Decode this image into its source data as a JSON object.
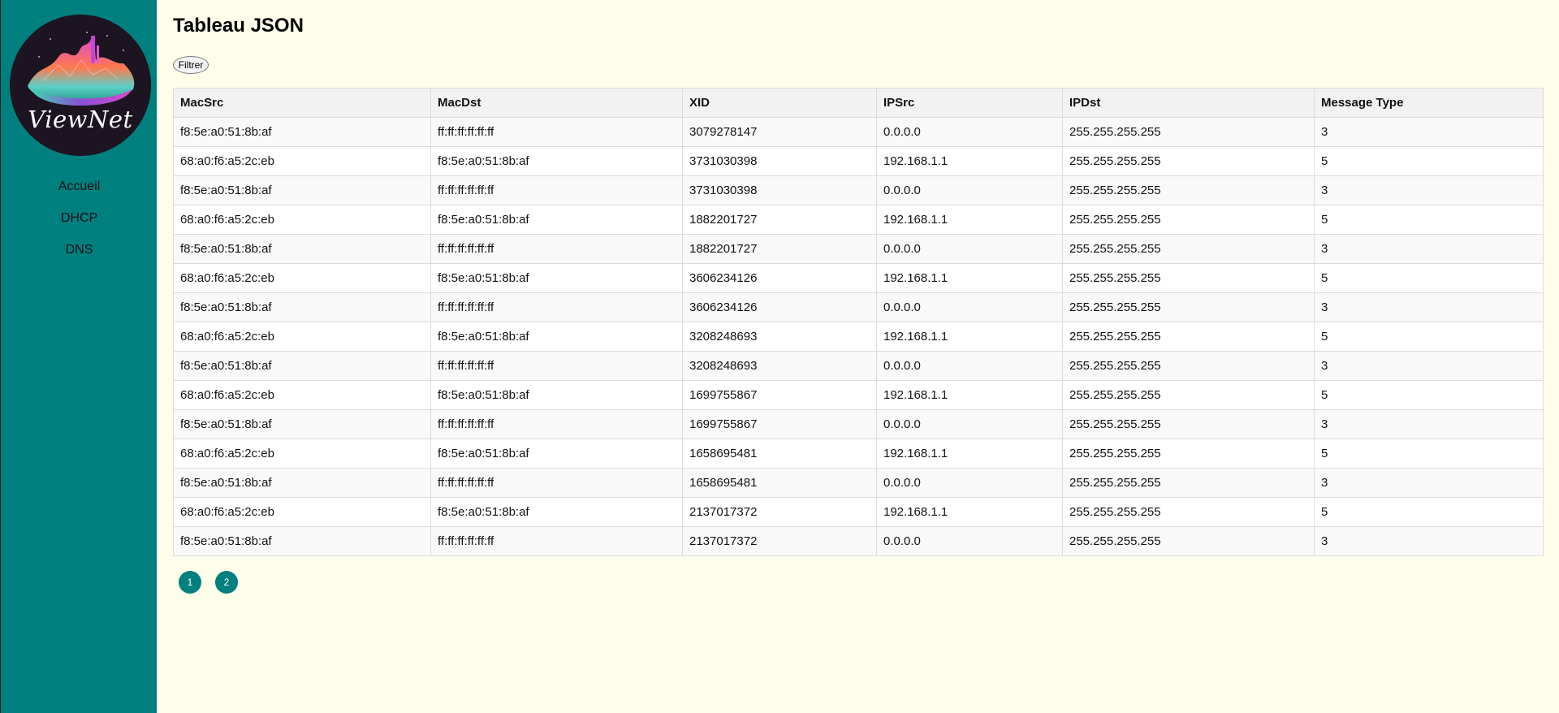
{
  "sidebar": {
    "logo_text": "ViewNet",
    "nav": [
      {
        "label": "Accueil"
      },
      {
        "label": "DHCP"
      },
      {
        "label": "DNS"
      }
    ]
  },
  "main": {
    "title": "Tableau JSON",
    "filter_label": "Filtrer"
  },
  "table": {
    "columns": [
      "MacSrc",
      "MacDst",
      "XID",
      "IPSrc",
      "IPDst",
      "Message Type"
    ],
    "rows": [
      [
        "f8:5e:a0:51:8b:af",
        "ff:ff:ff:ff:ff:ff",
        "3079278147",
        "0.0.0.0",
        "255.255.255.255",
        "3"
      ],
      [
        "68:a0:f6:a5:2c:eb",
        "f8:5e:a0:51:8b:af",
        "3731030398",
        "192.168.1.1",
        "255.255.255.255",
        "5"
      ],
      [
        "f8:5e:a0:51:8b:af",
        "ff:ff:ff:ff:ff:ff",
        "3731030398",
        "0.0.0.0",
        "255.255.255.255",
        "3"
      ],
      [
        "68:a0:f6:a5:2c:eb",
        "f8:5e:a0:51:8b:af",
        "1882201727",
        "192.168.1.1",
        "255.255.255.255",
        "5"
      ],
      [
        "f8:5e:a0:51:8b:af",
        "ff:ff:ff:ff:ff:ff",
        "1882201727",
        "0.0.0.0",
        "255.255.255.255",
        "3"
      ],
      [
        "68:a0:f6:a5:2c:eb",
        "f8:5e:a0:51:8b:af",
        "3606234126",
        "192.168.1.1",
        "255.255.255.255",
        "5"
      ],
      [
        "f8:5e:a0:51:8b:af",
        "ff:ff:ff:ff:ff:ff",
        "3606234126",
        "0.0.0.0",
        "255.255.255.255",
        "3"
      ],
      [
        "68:a0:f6:a5:2c:eb",
        "f8:5e:a0:51:8b:af",
        "3208248693",
        "192.168.1.1",
        "255.255.255.255",
        "5"
      ],
      [
        "f8:5e:a0:51:8b:af",
        "ff:ff:ff:ff:ff:ff",
        "3208248693",
        "0.0.0.0",
        "255.255.255.255",
        "3"
      ],
      [
        "68:a0:f6:a5:2c:eb",
        "f8:5e:a0:51:8b:af",
        "1699755867",
        "192.168.1.1",
        "255.255.255.255",
        "5"
      ],
      [
        "f8:5e:a0:51:8b:af",
        "ff:ff:ff:ff:ff:ff",
        "1699755867",
        "0.0.0.0",
        "255.255.255.255",
        "3"
      ],
      [
        "68:a0:f6:a5:2c:eb",
        "f8:5e:a0:51:8b:af",
        "1658695481",
        "192.168.1.1",
        "255.255.255.255",
        "5"
      ],
      [
        "f8:5e:a0:51:8b:af",
        "ff:ff:ff:ff:ff:ff",
        "1658695481",
        "0.0.0.0",
        "255.255.255.255",
        "3"
      ],
      [
        "68:a0:f6:a5:2c:eb",
        "f8:5e:a0:51:8b:af",
        "2137017372",
        "192.168.1.1",
        "255.255.255.255",
        "5"
      ],
      [
        "f8:5e:a0:51:8b:af",
        "ff:ff:ff:ff:ff:ff",
        "2137017372",
        "0.0.0.0",
        "255.255.255.255",
        "3"
      ]
    ]
  },
  "pagination": {
    "pages": [
      "1",
      "2"
    ]
  },
  "colors": {
    "sidebar": "#007f7f",
    "background": "#fefeeb",
    "page_button": "#007f7f"
  }
}
